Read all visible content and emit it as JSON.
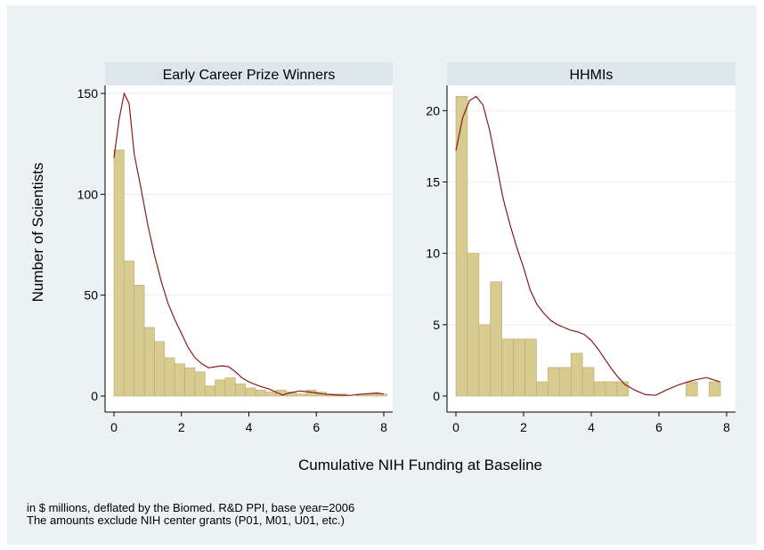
{
  "chart_data": [
    {
      "type": "bar",
      "title": "Early Career Prize Winners",
      "xlim": [
        0,
        8
      ],
      "ylim": [
        0,
        150
      ],
      "xticks": [
        0,
        2,
        4,
        6,
        8
      ],
      "yticks": [
        0,
        50,
        100,
        150
      ],
      "bin_width": 0.3,
      "bins": [
        {
          "x": 0.0,
          "value": 122
        },
        {
          "x": 0.3,
          "value": 67
        },
        {
          "x": 0.6,
          "value": 55
        },
        {
          "x": 0.9,
          "value": 34
        },
        {
          "x": 1.2,
          "value": 27
        },
        {
          "x": 1.5,
          "value": 19
        },
        {
          "x": 1.8,
          "value": 16
        },
        {
          "x": 2.1,
          "value": 14
        },
        {
          "x": 2.4,
          "value": 12
        },
        {
          "x": 2.7,
          "value": 5
        },
        {
          "x": 3.0,
          "value": 8
        },
        {
          "x": 3.3,
          "value": 9
        },
        {
          "x": 3.6,
          "value": 6
        },
        {
          "x": 3.9,
          "value": 4
        },
        {
          "x": 4.2,
          "value": 3
        },
        {
          "x": 4.5,
          "value": 2
        },
        {
          "x": 4.8,
          "value": 3
        },
        {
          "x": 5.1,
          "value": 2
        },
        {
          "x": 5.4,
          "value": 1
        },
        {
          "x": 5.7,
          "value": 3
        },
        {
          "x": 6.0,
          "value": 2
        },
        {
          "x": 6.3,
          "value": 1
        },
        {
          "x": 6.6,
          "value": 1
        },
        {
          "x": 6.9,
          "value": 0
        },
        {
          "x": 7.2,
          "value": 1
        },
        {
          "x": 7.5,
          "value": 1
        },
        {
          "x": 7.8,
          "value": 1
        }
      ],
      "density_curve": [
        [
          0.0,
          118
        ],
        [
          0.15,
          137
        ],
        [
          0.3,
          150
        ],
        [
          0.45,
          145
        ],
        [
          0.6,
          120
        ],
        [
          0.8,
          103
        ],
        [
          1.0,
          85
        ],
        [
          1.2,
          70
        ],
        [
          1.4,
          57
        ],
        [
          1.6,
          46
        ],
        [
          1.8,
          38
        ],
        [
          2.0,
          31
        ],
        [
          2.2,
          24
        ],
        [
          2.4,
          19
        ],
        [
          2.6,
          16
        ],
        [
          2.8,
          14
        ],
        [
          3.0,
          14.5
        ],
        [
          3.2,
          15
        ],
        [
          3.4,
          14.5
        ],
        [
          3.6,
          12
        ],
        [
          3.8,
          9
        ],
        [
          4.0,
          7
        ],
        [
          4.3,
          5
        ],
        [
          4.6,
          3.5
        ],
        [
          4.8,
          2
        ],
        [
          5.0,
          0.5
        ],
        [
          5.2,
          1.5
        ],
        [
          5.5,
          2.5
        ],
        [
          5.8,
          2
        ],
        [
          6.2,
          1
        ],
        [
          6.6,
          0.5
        ],
        [
          7.0,
          0.3
        ],
        [
          7.4,
          1
        ],
        [
          7.8,
          1.5
        ],
        [
          8.0,
          1
        ]
      ]
    },
    {
      "type": "bar",
      "title": "HHMIs",
      "xlim": [
        0,
        8
      ],
      "ylim": [
        0,
        21
      ],
      "xticks": [
        0,
        2,
        4,
        6,
        8
      ],
      "yticks": [
        0,
        5,
        10,
        15,
        20
      ],
      "bin_width": 0.34,
      "bins": [
        {
          "x": 0.0,
          "value": 21
        },
        {
          "x": 0.34,
          "value": 10
        },
        {
          "x": 0.68,
          "value": 5
        },
        {
          "x": 1.02,
          "value": 8
        },
        {
          "x": 1.36,
          "value": 4
        },
        {
          "x": 1.7,
          "value": 4
        },
        {
          "x": 2.04,
          "value": 4
        },
        {
          "x": 2.38,
          "value": 1
        },
        {
          "x": 2.72,
          "value": 2
        },
        {
          "x": 3.06,
          "value": 2
        },
        {
          "x": 3.4,
          "value": 3
        },
        {
          "x": 3.74,
          "value": 2
        },
        {
          "x": 4.08,
          "value": 1
        },
        {
          "x": 4.42,
          "value": 1
        },
        {
          "x": 4.76,
          "value": 1
        },
        {
          "x": 6.8,
          "value": 1
        },
        {
          "x": 7.48,
          "value": 1
        }
      ],
      "density_curve": [
        [
          0.0,
          17.2
        ],
        [
          0.2,
          19.5
        ],
        [
          0.4,
          20.7
        ],
        [
          0.6,
          21
        ],
        [
          0.8,
          20.4
        ],
        [
          1.0,
          18.6
        ],
        [
          1.2,
          16.2
        ],
        [
          1.4,
          13.8
        ],
        [
          1.6,
          12
        ],
        [
          1.8,
          10.4
        ],
        [
          2.0,
          9
        ],
        [
          2.2,
          7.4
        ],
        [
          2.4,
          6.4
        ],
        [
          2.6,
          5.8
        ],
        [
          2.8,
          5.3
        ],
        [
          3.0,
          5
        ],
        [
          3.2,
          4.8
        ],
        [
          3.4,
          4.6
        ],
        [
          3.6,
          4.5
        ],
        [
          3.8,
          4.3
        ],
        [
          4.0,
          3.9
        ],
        [
          4.2,
          3.3
        ],
        [
          4.4,
          2.6
        ],
        [
          4.6,
          1.9
        ],
        [
          4.8,
          1.3
        ],
        [
          5.0,
          0.8
        ],
        [
          5.3,
          0.4
        ],
        [
          5.6,
          0.1
        ],
        [
          5.9,
          0.05
        ],
        [
          6.2,
          0.4
        ],
        [
          6.6,
          0.8
        ],
        [
          7.0,
          1.1
        ],
        [
          7.4,
          1.3
        ],
        [
          7.8,
          1.0
        ]
      ]
    }
  ],
  "ylabel": "Number of Scientists",
  "xlabel": "Cumulative NIH Funding at Baseline",
  "notes": [
    "in $ millions, deflated by the Biomed. R&D PPI, base year=2006",
    "The amounts exclude NIH center grants (P01, M01, U01, etc.)"
  ],
  "colors": {
    "bar_fill": "#d7cb8f",
    "bar_stroke": "#b7ab6f",
    "curve": "#8b1a1a",
    "header_fill": "#dde6ea",
    "panel_fill": "#ffffff",
    "frame_fill": "#eaf2f3",
    "grid": "#e6eef0"
  }
}
